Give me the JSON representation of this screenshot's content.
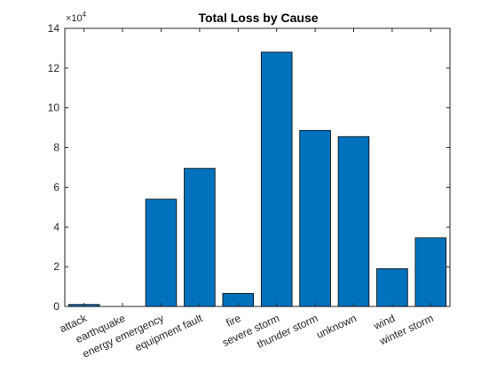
{
  "chart_data": {
    "type": "bar",
    "title": "Total Loss by Cause",
    "xlabel": "",
    "ylabel": "",
    "categories": [
      "attack",
      "earthquake",
      "energy emergency",
      "equipment fault",
      "fire",
      "severe storm",
      "thunder storm",
      "unknown",
      "wind",
      "winter storm"
    ],
    "values": [
      1000,
      0,
      54000,
      69500,
      6500,
      128000,
      88600,
      85500,
      19000,
      34500
    ],
    "ylim": [
      0,
      140000
    ],
    "y_ticks": [
      0,
      20000,
      40000,
      60000,
      80000,
      100000,
      120000,
      140000
    ],
    "y_tick_labels": [
      "0",
      "2",
      "4",
      "6",
      "8",
      "10",
      "12",
      "14"
    ],
    "y_exponent_label": "×10",
    "y_exponent_power": "4",
    "bar_color": "#0072BD",
    "grid": false,
    "legend": "none"
  }
}
